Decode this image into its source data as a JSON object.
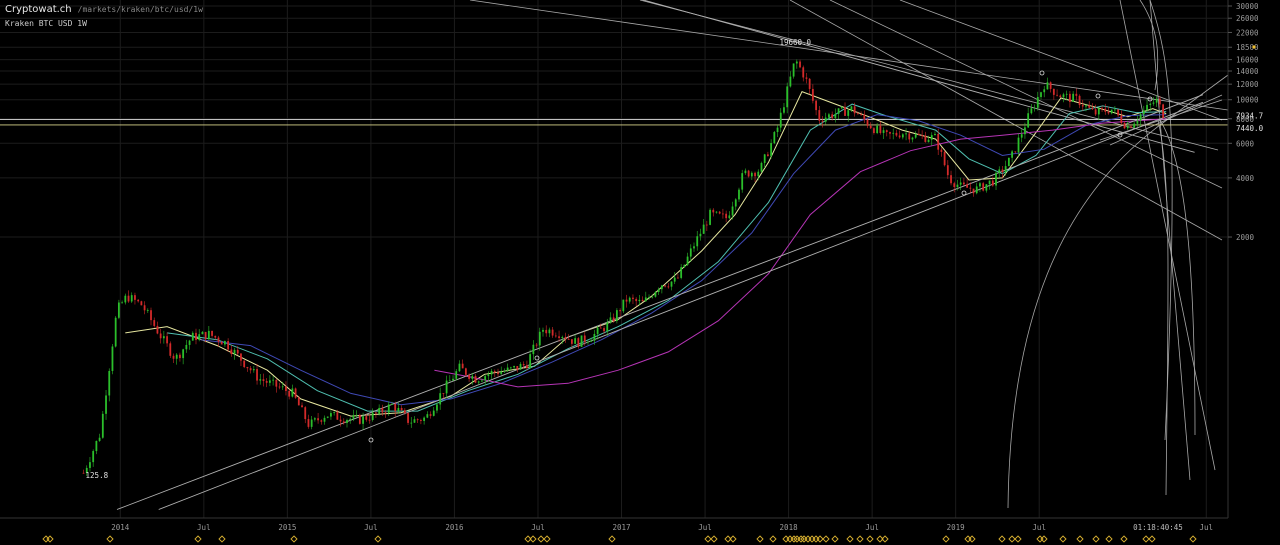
{
  "header": {
    "site": "Cryptowat.ch",
    "path": "/markets/kraken/btc/usd/1w",
    "subtitle": "Kraken BTC USD 1W"
  },
  "clock": "01:18:40:45",
  "colors": {
    "bg": "#000000",
    "up": "#2bbf2b",
    "down": "#d42a2a",
    "grid": "#1c1c1c",
    "axis": "#888888"
  },
  "chart_data": {
    "type": "line",
    "scale": "log",
    "ylim": [
      100,
      32000
    ],
    "y_ticks": [
      2000,
      4000,
      6000,
      8000,
      10000,
      12000,
      14000,
      16000,
      18500,
      22000,
      26000,
      30000
    ],
    "x_tick_labels": [
      "2014",
      "Jul",
      "2015",
      "Jul",
      "2016",
      "Jul",
      "2017",
      "Jul",
      "2018",
      "Jul",
      "2019",
      "Jul",
      "Jul"
    ],
    "annotations": {
      "high_label": "19660.0",
      "low_label": "125.8",
      "last_price": "7934.7",
      "level": "7440.0"
    },
    "series": [
      {
        "key": "price",
        "color": "#2bbf2b",
        "points": [
          [
            2013.7,
            126
          ],
          [
            2013.8,
            200
          ],
          [
            2013.9,
            850
          ],
          [
            2013.96,
            1000
          ],
          [
            2014.05,
            900
          ],
          [
            2014.15,
            650
          ],
          [
            2014.25,
            480
          ],
          [
            2014.35,
            620
          ],
          [
            2014.45,
            640
          ],
          [
            2014.55,
            580
          ],
          [
            2014.65,
            470
          ],
          [
            2014.75,
            380
          ],
          [
            2014.85,
            350
          ],
          [
            2014.95,
            320
          ],
          [
            2015.05,
            220
          ],
          [
            2015.15,
            250
          ],
          [
            2015.25,
            240
          ],
          [
            2015.35,
            235
          ],
          [
            2015.45,
            250
          ],
          [
            2015.55,
            280
          ],
          [
            2015.65,
            230
          ],
          [
            2015.75,
            240
          ],
          [
            2015.85,
            330
          ],
          [
            2015.95,
            430
          ],
          [
            2016.05,
            380
          ],
          [
            2016.15,
            410
          ],
          [
            2016.25,
            420
          ],
          [
            2016.35,
            450
          ],
          [
            2016.45,
            680
          ],
          [
            2016.55,
            650
          ],
          [
            2016.65,
            580
          ],
          [
            2016.75,
            630
          ],
          [
            2016.85,
            730
          ],
          [
            2016.95,
            960
          ],
          [
            2017.05,
            920
          ],
          [
            2017.15,
            1150
          ],
          [
            2017.25,
            1200
          ],
          [
            2017.35,
            1800
          ],
          [
            2017.45,
            2600
          ],
          [
            2017.55,
            2500
          ],
          [
            2017.65,
            4200
          ],
          [
            2017.75,
            4400
          ],
          [
            2017.85,
            7000
          ],
          [
            2017.96,
            16000
          ],
          [
            2018.02,
            13000
          ],
          [
            2018.1,
            8000
          ],
          [
            2018.2,
            8500
          ],
          [
            2018.3,
            9000
          ],
          [
            2018.4,
            7500
          ],
          [
            2018.5,
            6500
          ],
          [
            2018.6,
            6800
          ],
          [
            2018.7,
            6500
          ],
          [
            2018.8,
            6400
          ],
          [
            2018.88,
            4000
          ],
          [
            2018.95,
            3600
          ],
          [
            2019.05,
            3500
          ],
          [
            2019.15,
            3900
          ],
          [
            2019.25,
            5000
          ],
          [
            2019.35,
            8000
          ],
          [
            2019.45,
            12000
          ],
          [
            2019.55,
            10500
          ],
          [
            2019.65,
            10000
          ],
          [
            2019.75,
            8500
          ],
          [
            2019.85,
            9000
          ],
          [
            2019.95,
            7300
          ],
          [
            2020.05,
            8800
          ],
          [
            2020.12,
            10000
          ],
          [
            2020.18,
            7935
          ]
        ]
      },
      {
        "key": "ma1",
        "color": "#e8e8a0",
        "points": [
          [
            2013.95,
            650
          ],
          [
            2014.2,
            700
          ],
          [
            2014.5,
            560
          ],
          [
            2014.8,
            420
          ],
          [
            2015.0,
            300
          ],
          [
            2015.3,
            245
          ],
          [
            2015.6,
            255
          ],
          [
            2015.9,
            310
          ],
          [
            2016.1,
            400
          ],
          [
            2016.4,
            440
          ],
          [
            2016.6,
            620
          ],
          [
            2016.9,
            760
          ],
          [
            2017.1,
            1000
          ],
          [
            2017.4,
            1700
          ],
          [
            2017.6,
            2600
          ],
          [
            2017.8,
            4800
          ],
          [
            2018.0,
            11000
          ],
          [
            2018.2,
            9500
          ],
          [
            2018.4,
            8200
          ],
          [
            2018.6,
            7000
          ],
          [
            2018.8,
            6300
          ],
          [
            2019.0,
            3900
          ],
          [
            2019.2,
            4000
          ],
          [
            2019.4,
            6800
          ],
          [
            2019.55,
            10200
          ],
          [
            2019.75,
            9200
          ],
          [
            2019.95,
            8200
          ],
          [
            2020.1,
            9000
          ],
          [
            2020.18,
            8500
          ]
        ]
      },
      {
        "key": "ma2",
        "color": "#4fbfb0",
        "points": [
          [
            2014.2,
            650
          ],
          [
            2014.5,
            600
          ],
          [
            2014.8,
            480
          ],
          [
            2015.1,
            330
          ],
          [
            2015.4,
            260
          ],
          [
            2015.7,
            260
          ],
          [
            2016.0,
            330
          ],
          [
            2016.3,
            400
          ],
          [
            2016.6,
            540
          ],
          [
            2016.9,
            700
          ],
          [
            2017.2,
            950
          ],
          [
            2017.5,
            1500
          ],
          [
            2017.8,
            3000
          ],
          [
            2018.05,
            7000
          ],
          [
            2018.3,
            9500
          ],
          [
            2018.5,
            8300
          ],
          [
            2018.8,
            7000
          ],
          [
            2019.0,
            5000
          ],
          [
            2019.2,
            4200
          ],
          [
            2019.4,
            5200
          ],
          [
            2019.6,
            8500
          ],
          [
            2019.8,
            9300
          ],
          [
            2020.0,
            8600
          ],
          [
            2020.18,
            8700
          ]
        ]
      },
      {
        "key": "ma3",
        "color": "#3f49b5",
        "points": [
          [
            2014.4,
            600
          ],
          [
            2014.7,
            560
          ],
          [
            2015.0,
            420
          ],
          [
            2015.3,
            320
          ],
          [
            2015.6,
            280
          ],
          [
            2015.9,
            300
          ],
          [
            2016.2,
            360
          ],
          [
            2016.5,
            460
          ],
          [
            2016.8,
            600
          ],
          [
            2017.1,
            820
          ],
          [
            2017.4,
            1200
          ],
          [
            2017.7,
            2100
          ],
          [
            2017.95,
            4200
          ],
          [
            2018.2,
            7000
          ],
          [
            2018.45,
            8400
          ],
          [
            2018.7,
            7800
          ],
          [
            2018.95,
            6600
          ],
          [
            2019.2,
            5200
          ],
          [
            2019.45,
            5600
          ],
          [
            2019.7,
            7400
          ],
          [
            2019.95,
            8300
          ],
          [
            2020.18,
            8400
          ]
        ]
      },
      {
        "key": "ma4",
        "color": "#b534b5",
        "points": [
          [
            2015.8,
            420
          ],
          [
            2016.0,
            390
          ],
          [
            2016.3,
            345
          ],
          [
            2016.6,
            360
          ],
          [
            2016.9,
            420
          ],
          [
            2017.2,
            520
          ],
          [
            2017.5,
            750
          ],
          [
            2017.8,
            1300
          ],
          [
            2018.05,
            2600
          ],
          [
            2018.35,
            4300
          ],
          [
            2018.65,
            5500
          ],
          [
            2018.95,
            6300
          ],
          [
            2019.2,
            6600
          ],
          [
            2019.5,
            7000
          ],
          [
            2019.8,
            7600
          ],
          [
            2020.18,
            8000
          ]
        ]
      },
      {
        "key": "trend1",
        "color": "#b0b0b0",
        "points": [
          [
            2013.9,
            82
          ],
          [
            2020.4,
            10600
          ]
        ]
      },
      {
        "key": "trend2",
        "color": "#b0b0b0",
        "points": [
          [
            2014.15,
            82
          ],
          [
            2020.4,
            9700
          ]
        ]
      },
      {
        "key": "resistance",
        "color": "#b0b0b0",
        "points": [
          [
            2015.9,
            60000
          ],
          [
            2020.35,
            5400
          ]
        ]
      }
    ]
  }
}
